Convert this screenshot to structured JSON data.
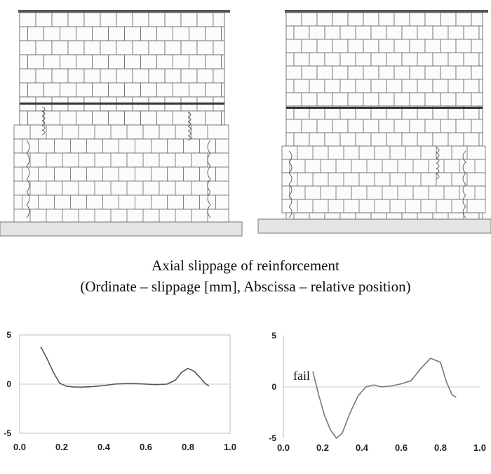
{
  "caption": {
    "line1": "Axial slippage of reinforcement",
    "line2": "(Ordinate – slippage [mm], Abscissa – relative position)"
  },
  "chart_data": [
    {
      "type": "line",
      "x": [
        0.1,
        0.13,
        0.16,
        0.19,
        0.22,
        0.26,
        0.3,
        0.35,
        0.4,
        0.45,
        0.5,
        0.55,
        0.6,
        0.65,
        0.7,
        0.74,
        0.77,
        0.8,
        0.83,
        0.86,
        0.88,
        0.9
      ],
      "series": [
        {
          "values": [
            3.8,
            2.6,
            1.2,
            0.1,
            -0.2,
            -0.3,
            -0.3,
            -0.25,
            -0.15,
            0.0,
            0.05,
            0.05,
            0.0,
            -0.05,
            0.0,
            0.4,
            1.2,
            1.6,
            1.3,
            0.6,
            0.1,
            -0.2
          ]
        }
      ],
      "xlim": [
        0.0,
        1.0
      ],
      "ylim": [
        -5,
        5
      ],
      "xticks": [
        "0.0",
        "0.2",
        "0.4",
        "0.6",
        "0.8",
        "1.0"
      ],
      "yticks": [
        "5",
        "0",
        "-5"
      ],
      "grid": false
    },
    {
      "type": "line",
      "x": [
        0.15,
        0.18,
        0.21,
        0.24,
        0.27,
        0.3,
        0.34,
        0.38,
        0.42,
        0.46,
        0.5,
        0.55,
        0.6,
        0.65,
        0.7,
        0.75,
        0.8,
        0.83,
        0.86,
        0.88
      ],
      "series": [
        {
          "values": [
            1.5,
            -0.8,
            -2.8,
            -4.2,
            -5.0,
            -4.5,
            -2.5,
            -0.9,
            0.0,
            0.2,
            0.0,
            0.1,
            0.3,
            0.6,
            1.8,
            2.8,
            2.4,
            0.5,
            -0.8,
            -1.0
          ]
        }
      ],
      "xlim": [
        0.0,
        1.0
      ],
      "ylim": [
        -5,
        5
      ],
      "xticks": [
        "0.0",
        "0.2",
        "0.4",
        "0.6",
        "0.8",
        "1.0"
      ],
      "yticks": [
        "5",
        "0",
        "-5"
      ],
      "grid": false,
      "annotation": "fail"
    }
  ]
}
